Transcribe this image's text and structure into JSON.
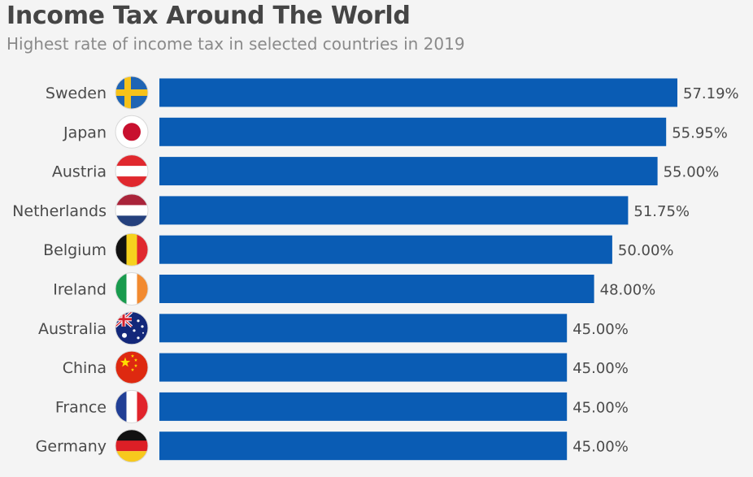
{
  "chart_data": {
    "type": "bar",
    "orientation": "horizontal",
    "title": "Income Tax Around The World",
    "subtitle": "Highest rate of income tax in selected countries in 2019",
    "categories": [
      "Sweden",
      "Japan",
      "Austria",
      "Netherlands",
      "Belgium",
      "Ireland",
      "Australia",
      "China",
      "France",
      "Germany"
    ],
    "values": [
      57.19,
      55.95,
      55.0,
      51.75,
      50.0,
      48.0,
      45.0,
      45.0,
      45.0,
      45.0
    ],
    "value_labels": [
      "57.19%",
      "55.95%",
      "55.00%",
      "51.75%",
      "50.00%",
      "48.00%",
      "45.00%",
      "45.00%",
      "45.00%",
      "45.00%"
    ],
    "flags": [
      "sweden-flag",
      "japan-flag",
      "austria-flag",
      "netherlands-flag",
      "belgium-flag",
      "ireland-flag",
      "australia-flag",
      "china-flag",
      "france-flag",
      "germany-flag"
    ],
    "xlim": [
      0,
      57.19
    ],
    "bar_color": "#0a5cb4",
    "xlabel": "",
    "ylabel": ""
  }
}
